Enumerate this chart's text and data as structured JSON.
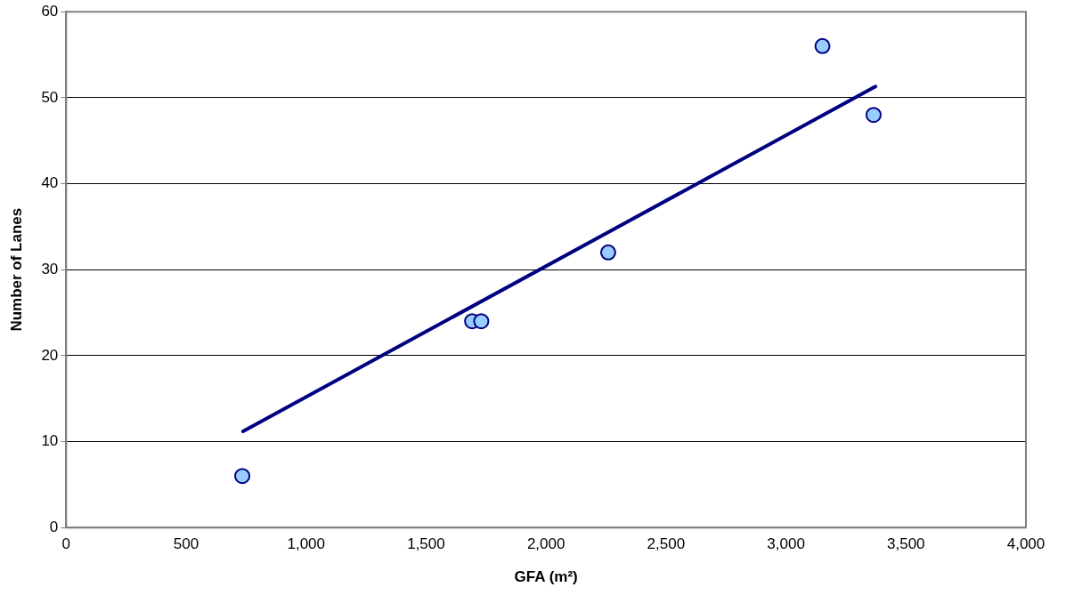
{
  "chart_data": {
    "type": "scatter",
    "xlabel": "GFA (m²)",
    "ylabel": "Number of Lanes",
    "series": [
      {
        "type": "scatter",
        "color": "#99ccff",
        "x": [
          734,
          1692,
          1730,
          2259,
          3152,
          3365
        ],
        "values": [
          6,
          24,
          24,
          32,
          56,
          48
        ],
        "marker": "circle"
      },
      {
        "type": "line",
        "color": "#000080",
        "x": [
          737,
          3373
        ],
        "values": [
          11.2,
          51.3
        ],
        "marker": "none",
        "line_style": "solid"
      }
    ],
    "xlim": [
      0,
      4000
    ],
    "xticks": [
      0,
      500,
      {
        "value": 1000,
        "label": "1,000"
      },
      {
        "value": 1500,
        "label": "1,500"
      },
      {
        "value": 2000,
        "label": "2,000"
      },
      {
        "value": 2500,
        "label": "2,500"
      },
      {
        "value": 3000,
        "label": "3,000"
      },
      {
        "value": 3500,
        "label": "3,500"
      },
      {
        "value": 4000,
        "label": "4,000"
      }
    ],
    "ylim": [
      0,
      60
    ],
    "yticks": [
      0,
      10,
      20,
      30,
      40,
      50,
      60
    ],
    "grid": "y",
    "legend": false
  }
}
